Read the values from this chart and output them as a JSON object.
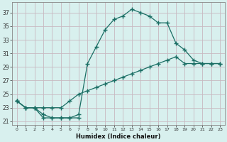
{
  "xlabel": "Humidex (Indice chaleur)",
  "bg_color": "#d8f0ee",
  "grid_color": "#c8b8c0",
  "line_color": "#1a6e64",
  "xlim": [
    -0.5,
    23.5
  ],
  "ylim": [
    20.5,
    38.5
  ],
  "xticks": [
    0,
    1,
    2,
    3,
    4,
    5,
    6,
    7,
    8,
    9,
    10,
    11,
    12,
    13,
    14,
    15,
    16,
    17,
    18,
    19,
    20,
    21,
    22,
    23
  ],
  "yticks": [
    21,
    23,
    25,
    27,
    29,
    31,
    33,
    35,
    37
  ],
  "line1_x": [
    0,
    1,
    2,
    3,
    4,
    5,
    6,
    7
  ],
  "line1_y": [
    24.0,
    23.0,
    23.0,
    21.5,
    21.5,
    21.5,
    21.5,
    21.5
  ],
  "line2_x": [
    0,
    1,
    2,
    3,
    4,
    5,
    6,
    7,
    8,
    9,
    10,
    11,
    12,
    13,
    14,
    15,
    16,
    17,
    18,
    19,
    20,
    21,
    22,
    23
  ],
  "line2_y": [
    24.0,
    23.0,
    23.0,
    23.0,
    23.0,
    23.0,
    24.0,
    25.0,
    25.5,
    26.0,
    26.5,
    27.0,
    27.5,
    28.0,
    28.5,
    29.0,
    29.5,
    30.0,
    30.5,
    29.5,
    29.5,
    29.5,
    29.5,
    29.5
  ],
  "line3_x": [
    0,
    1,
    2,
    3,
    4,
    5,
    6,
    7,
    8,
    9,
    10,
    11,
    12,
    13,
    14,
    15,
    16,
    17,
    18,
    19,
    20,
    21,
    22,
    23
  ],
  "line3_y": [
    24.0,
    23.0,
    23.0,
    22.0,
    21.5,
    21.5,
    21.5,
    22.0,
    29.5,
    32.0,
    34.5,
    36.0,
    36.5,
    37.5,
    37.0,
    36.5,
    35.5,
    35.5,
    32.5,
    31.5,
    30.0,
    29.5,
    29.5,
    29.5
  ]
}
